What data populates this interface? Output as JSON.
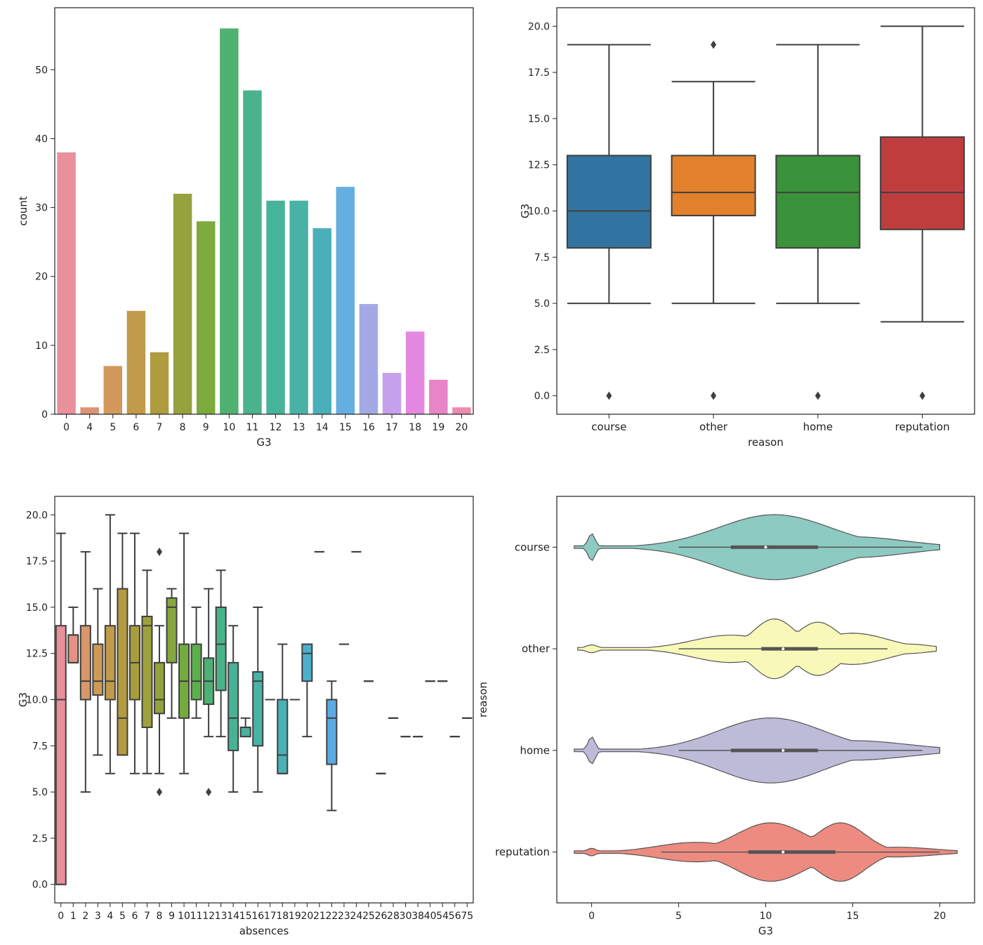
{
  "chart_data": [
    {
      "type": "bar",
      "xlabel": "G3",
      "ylabel": "count",
      "ylim": [
        0,
        59
      ],
      "yticks": [
        0,
        10,
        20,
        30,
        40,
        50
      ],
      "categories": [
        "0",
        "4",
        "5",
        "6",
        "7",
        "8",
        "9",
        "10",
        "11",
        "12",
        "13",
        "14",
        "15",
        "16",
        "17",
        "18",
        "19",
        "20"
      ],
      "values": [
        38,
        1,
        7,
        15,
        9,
        32,
        28,
        56,
        47,
        31,
        31,
        27,
        33,
        16,
        6,
        12,
        5,
        1
      ],
      "colors": [
        "#e8909c",
        "#de9474",
        "#d3995c",
        "#c19a4a",
        "#ae9c3f",
        "#96a23d",
        "#7daa3d",
        "#50b170",
        "#4ab38c",
        "#48b39b",
        "#49b2a6",
        "#4bafba",
        "#65aee0",
        "#a4a9e6",
        "#c5a1ec",
        "#e488e2",
        "#e885c8",
        "#ec8ab0"
      ]
    },
    {
      "type": "box",
      "xlabel": "reason",
      "ylabel": "G3",
      "ylim": [
        -1,
        21
      ],
      "yticks": [
        "0.0",
        "2.5",
        "5.0",
        "7.5",
        "10.0",
        "12.5",
        "15.0",
        "17.5",
        "20.0"
      ],
      "categories": [
        "course",
        "other",
        "home",
        "reputation"
      ],
      "boxes": [
        {
          "q1": 8,
          "median": 10,
          "q3": 13,
          "whisker_low": 5,
          "whisker_high": 19,
          "outliers": [
            0
          ]
        },
        {
          "q1": 9.75,
          "median": 11,
          "q3": 13,
          "whisker_low": 5,
          "whisker_high": 17,
          "outliers": [
            0,
            19
          ]
        },
        {
          "q1": 8,
          "median": 11,
          "q3": 13,
          "whisker_low": 5,
          "whisker_high": 19,
          "outliers": [
            0
          ]
        },
        {
          "q1": 9,
          "median": 11,
          "q3": 14,
          "whisker_low": 4,
          "whisker_high": 20,
          "outliers": [
            0
          ]
        }
      ],
      "colors": [
        "#3274a1",
        "#e1812c",
        "#3a923a",
        "#c03d3e"
      ]
    },
    {
      "type": "box",
      "xlabel": "absences",
      "ylabel": "G3",
      "ylim": [
        -1,
        21
      ],
      "yticks": [
        "0.0",
        "2.5",
        "5.0",
        "7.5",
        "10.0",
        "12.5",
        "15.0",
        "17.5",
        "20.0"
      ],
      "categories": [
        "0",
        "1",
        "2",
        "3",
        "4",
        "5",
        "6",
        "7",
        "8",
        "9",
        "10",
        "11",
        "12",
        "13",
        "14",
        "15",
        "16",
        "17",
        "18",
        "19",
        "20",
        "21",
        "22",
        "23",
        "24",
        "25",
        "26",
        "28",
        "30",
        "38",
        "40",
        "54",
        "56",
        "75"
      ],
      "boxes": [
        {
          "q1": 0,
          "median": 10,
          "q3": 14,
          "whisker_low": 0,
          "whisker_high": 19,
          "outliers": []
        },
        {
          "q1": 12,
          "median": 13.5,
          "q3": 13.5,
          "whisker_low": 12,
          "whisker_high": 15,
          "outliers": []
        },
        {
          "q1": 10,
          "median": 11,
          "q3": 14,
          "whisker_low": 5,
          "whisker_high": 18,
          "outliers": []
        },
        {
          "q1": 10.25,
          "median": 11,
          "q3": 13,
          "whisker_low": 7,
          "whisker_high": 16,
          "outliers": []
        },
        {
          "q1": 10,
          "median": 11,
          "q3": 14,
          "whisker_low": 6,
          "whisker_high": 20,
          "outliers": []
        },
        {
          "q1": 7,
          "median": 9,
          "q3": 16,
          "whisker_low": 7,
          "whisker_high": 19,
          "outliers": []
        },
        {
          "q1": 10,
          "median": 12,
          "q3": 14,
          "whisker_low": 6,
          "whisker_high": 19,
          "outliers": []
        },
        {
          "q1": 8.5,
          "median": 14,
          "q3": 14.5,
          "whisker_low": 6,
          "whisker_high": 17,
          "outliers": []
        },
        {
          "q1": 9.25,
          "median": 10,
          "q3": 12,
          "whisker_low": 6,
          "whisker_high": 14,
          "outliers": [
            5,
            18
          ]
        },
        {
          "q1": 12,
          "median": 15,
          "q3": 15.5,
          "whisker_low": 9,
          "whisker_high": 16,
          "outliers": []
        },
        {
          "q1": 9,
          "median": 11,
          "q3": 13,
          "whisker_low": 6,
          "whisker_high": 19,
          "outliers": []
        },
        {
          "q1": 10,
          "median": 11,
          "q3": 13,
          "whisker_low": 9,
          "whisker_high": 15,
          "outliers": []
        },
        {
          "q1": 9.75,
          "median": 11,
          "q3": 12.25,
          "whisker_low": 8,
          "whisker_high": 16,
          "outliers": [
            5
          ]
        },
        {
          "q1": 10.5,
          "median": 13,
          "q3": 15,
          "whisker_low": 8,
          "whisker_high": 17,
          "outliers": []
        },
        {
          "q1": 7.25,
          "median": 9,
          "q3": 12,
          "whisker_low": 5,
          "whisker_high": 14,
          "outliers": []
        },
        {
          "q1": 8,
          "median": 8.5,
          "q3": 8.5,
          "whisker_low": 8,
          "whisker_high": 9,
          "outliers": []
        },
        {
          "q1": 7.5,
          "median": 11,
          "q3": 11.5,
          "whisker_low": 5,
          "whisker_high": 15,
          "outliers": []
        },
        {
          "q1": 10,
          "median": 10,
          "q3": 10,
          "whisker_low": 10,
          "whisker_high": 10,
          "outliers": []
        },
        {
          "q1": 6,
          "median": 7,
          "q3": 10,
          "whisker_low": 6,
          "whisker_high": 13,
          "outliers": []
        },
        {
          "q1": 10,
          "median": 10,
          "q3": 10,
          "whisker_low": 10,
          "whisker_high": 10,
          "outliers": []
        },
        {
          "q1": 11,
          "median": 12.5,
          "q3": 13,
          "whisker_low": 8,
          "whisker_high": 13,
          "outliers": []
        },
        {
          "q1": 18,
          "median": 18,
          "q3": 18,
          "whisker_low": 18,
          "whisker_high": 18,
          "outliers": []
        },
        {
          "q1": 6.5,
          "median": 9,
          "q3": 10,
          "whisker_low": 4,
          "whisker_high": 11,
          "outliers": []
        },
        {
          "q1": 13,
          "median": 13,
          "q3": 13,
          "whisker_low": 13,
          "whisker_high": 13,
          "outliers": []
        },
        {
          "q1": 18,
          "median": 18,
          "q3": 18,
          "whisker_low": 18,
          "whisker_high": 18,
          "outliers": []
        },
        {
          "q1": 11,
          "median": 11,
          "q3": 11,
          "whisker_low": 11,
          "whisker_high": 11,
          "outliers": []
        },
        {
          "q1": 6,
          "median": 6,
          "q3": 6,
          "whisker_low": 6,
          "whisker_high": 6,
          "outliers": []
        },
        {
          "q1": 9,
          "median": 9,
          "q3": 9,
          "whisker_low": 9,
          "whisker_high": 9,
          "outliers": []
        },
        {
          "q1": 8,
          "median": 8,
          "q3": 8,
          "whisker_low": 8,
          "whisker_high": 8,
          "outliers": []
        },
        {
          "q1": 8,
          "median": 8,
          "q3": 8,
          "whisker_low": 8,
          "whisker_high": 8,
          "outliers": []
        },
        {
          "q1": 11,
          "median": 11,
          "q3": 11,
          "whisker_low": 11,
          "whisker_high": 11,
          "outliers": []
        },
        {
          "q1": 11,
          "median": 11,
          "q3": 11,
          "whisker_low": 11,
          "whisker_high": 11,
          "outliers": []
        },
        {
          "q1": 8,
          "median": 8,
          "q3": 8,
          "whisker_low": 8,
          "whisker_high": 8,
          "outliers": []
        },
        {
          "q1": 9,
          "median": 9,
          "q3": 9,
          "whisker_low": 9,
          "whisker_high": 9,
          "outliers": []
        }
      ],
      "colors": [
        "#e8909c",
        "#e49282",
        "#d9976a",
        "#cf9a56",
        "#c19a4a",
        "#b59b3f",
        "#a89d3c",
        "#9ea03c",
        "#94a23d",
        "#86a73d",
        "#74ab3e",
        "#5caf4a",
        "#4db174",
        "#49b388",
        "#48b394",
        "#48b39d",
        "#48b3a6",
        "#49b2ae",
        "#4ab1b7",
        "#4bb0c1",
        "#4dafca",
        "#52add6",
        "#5aabe3",
        "#6ea9e6",
        "#87a8e8",
        "#9ea6e9",
        "#b3a3eb",
        "#c6a0ec",
        "#d69ae9",
        "#e391e3",
        "#e78ad6",
        "#e886c8",
        "#e987bb",
        "#eb89ae"
      ]
    },
    {
      "type": "violin",
      "orientation": "horizontal",
      "xlabel": "G3",
      "ylabel": "reason",
      "xlim": [
        -2,
        22
      ],
      "xticks": [
        0,
        5,
        10,
        15,
        20
      ],
      "categories": [
        "course",
        "other",
        "home",
        "reputation"
      ],
      "colors": [
        "#8dcac1",
        "#f8f8b8",
        "#bebbd9",
        "#ed8b80"
      ],
      "data_range": [
        [
          -1,
          20
        ],
        [
          -0.8,
          19.8
        ],
        [
          -1,
          20
        ],
        [
          -1,
          21
        ]
      ],
      "stats": [
        {
          "median": 10,
          "q1": 8,
          "q3": 13,
          "whisker_low": 5,
          "whisker_high": 19
        },
        {
          "median": 11,
          "q1": 9.75,
          "q3": 13,
          "whisker_low": 5,
          "whisker_high": 17
        },
        {
          "median": 11,
          "q1": 8,
          "q3": 13,
          "whisker_low": 5,
          "whisker_high": 19
        },
        {
          "median": 11,
          "q1": 9,
          "q3": 14,
          "whisker_low": 4,
          "whisker_high": 20
        }
      ],
      "density_modes": [
        [
          {
            "x": 0,
            "w": 0.2,
            "h": 0.42
          },
          {
            "x": 10.5,
            "w": 3.2,
            "h": 1.0
          },
          {
            "x": 15,
            "w": 3.0,
            "h": 0.32
          }
        ],
        [
          {
            "x": 0,
            "w": 0.35,
            "h": 0.12
          },
          {
            "x": 8,
            "w": 2.2,
            "h": 0.42
          },
          {
            "x": 10.5,
            "w": 1.2,
            "h": 0.92
          },
          {
            "x": 13,
            "w": 1.2,
            "h": 0.82
          },
          {
            "x": 15,
            "w": 2.0,
            "h": 0.48
          },
          {
            "x": 18,
            "w": 1.5,
            "h": 0.15
          }
        ],
        [
          {
            "x": 0,
            "w": 0.2,
            "h": 0.42
          },
          {
            "x": 10.3,
            "w": 3.0,
            "h": 1.0
          },
          {
            "x": 15,
            "w": 3.2,
            "h": 0.3
          }
        ],
        [
          {
            "x": 0,
            "w": 0.25,
            "h": 0.12
          },
          {
            "x": 6,
            "w": 2.2,
            "h": 0.3
          },
          {
            "x": 10.3,
            "w": 2.0,
            "h": 0.9
          },
          {
            "x": 14.3,
            "w": 1.4,
            "h": 0.9
          },
          {
            "x": 17.5,
            "w": 2.2,
            "h": 0.15
          }
        ]
      ]
    }
  ]
}
